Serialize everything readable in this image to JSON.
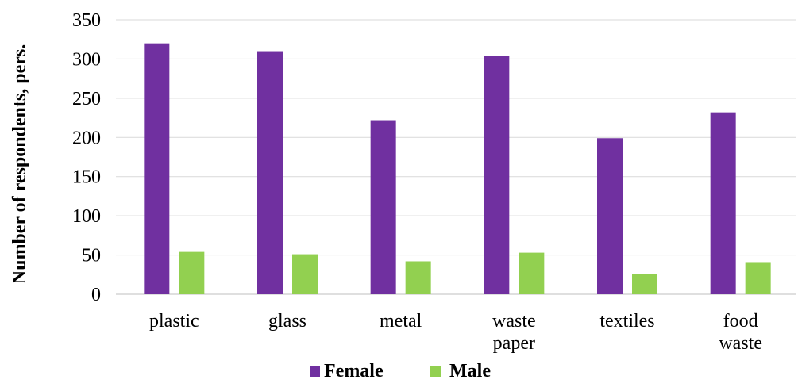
{
  "chart_data": {
    "type": "bar",
    "title": "",
    "xlabel": "",
    "ylabel": "Number of respondents, pers.",
    "ylim": [
      0,
      350
    ],
    "y_ticks": [
      0,
      50,
      100,
      150,
      200,
      250,
      300,
      350
    ],
    "grid": true,
    "legend_position": "bottom",
    "categories": [
      [
        "plastic"
      ],
      [
        "glass"
      ],
      [
        "metal"
      ],
      [
        "waste",
        "paper"
      ],
      [
        "textiles"
      ],
      [
        "food",
        "waste"
      ]
    ],
    "series": [
      {
        "name": "Female",
        "color": "#7030a0",
        "values": [
          320,
          310,
          222,
          304,
          199,
          232
        ]
      },
      {
        "name": "Male",
        "color": "#92d050",
        "values": [
          54,
          51,
          42,
          53,
          26,
          40
        ]
      }
    ]
  }
}
